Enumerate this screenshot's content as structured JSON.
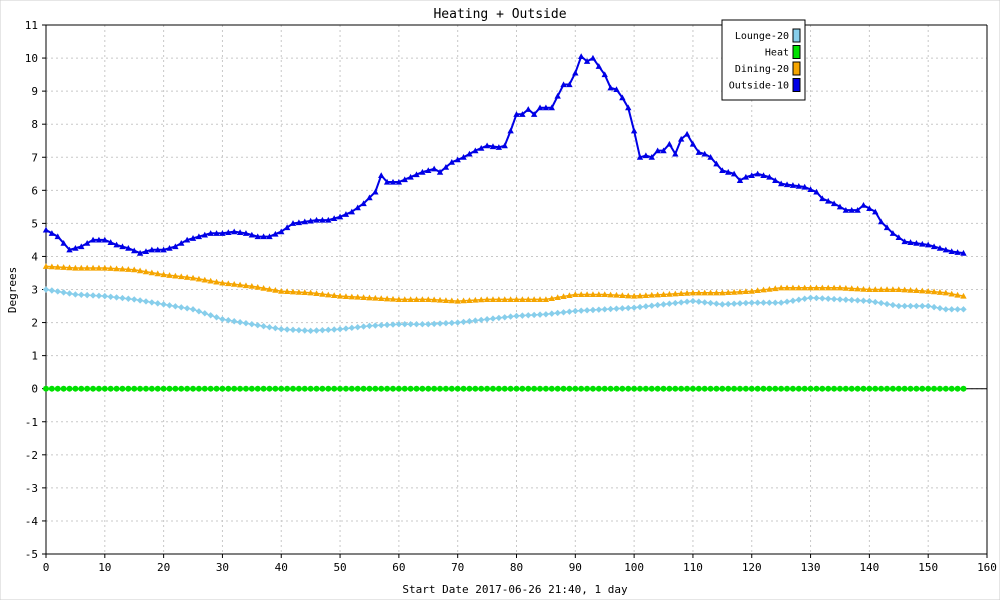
{
  "chart_data": {
    "type": "line",
    "title": "Heating + Outside",
    "xlabel": "Start Date 2017-06-26 21:40, 1 day",
    "ylabel": "Degrees",
    "xlim": [
      0,
      160
    ],
    "ylim": [
      -5,
      11
    ],
    "x_ticks": [
      0,
      10,
      20,
      30,
      40,
      50,
      60,
      70,
      80,
      90,
      100,
      110,
      120,
      130,
      140,
      150,
      160
    ],
    "y_ticks": [
      -5,
      -4,
      -3,
      -2,
      -1,
      0,
      1,
      2,
      3,
      4,
      5,
      6,
      7,
      8,
      9,
      10,
      11
    ],
    "grid": true,
    "legend_position": "top-right",
    "series": [
      {
        "name": "Lounge-20",
        "color": "#87ceeb",
        "marker": "diamond",
        "points": [
          [
            0,
            3.0
          ],
          [
            5,
            2.85
          ],
          [
            10,
            2.8
          ],
          [
            15,
            2.7
          ],
          [
            20,
            2.55
          ],
          [
            25,
            2.4
          ],
          [
            30,
            2.1
          ],
          [
            35,
            1.95
          ],
          [
            40,
            1.8
          ],
          [
            45,
            1.75
          ],
          [
            50,
            1.8
          ],
          [
            55,
            1.9
          ],
          [
            60,
            1.95
          ],
          [
            65,
            1.95
          ],
          [
            70,
            2.0
          ],
          [
            75,
            2.1
          ],
          [
            80,
            2.2
          ],
          [
            85,
            2.25
          ],
          [
            90,
            2.35
          ],
          [
            95,
            2.4
          ],
          [
            100,
            2.45
          ],
          [
            105,
            2.55
          ],
          [
            110,
            2.65
          ],
          [
            115,
            2.55
          ],
          [
            120,
            2.6
          ],
          [
            125,
            2.6
          ],
          [
            130,
            2.75
          ],
          [
            135,
            2.7
          ],
          [
            140,
            2.65
          ],
          [
            145,
            2.5
          ],
          [
            150,
            2.5
          ],
          [
            153,
            2.4
          ],
          [
            156,
            2.4
          ]
        ]
      },
      {
        "name": "Heat",
        "color": "#00e000",
        "marker": "circle",
        "points": [
          [
            0,
            0
          ],
          [
            156,
            0
          ]
        ]
      },
      {
        "name": "Dining-20",
        "color": "#f5a500",
        "marker": "triangle",
        "points": [
          [
            0,
            3.7
          ],
          [
            5,
            3.65
          ],
          [
            10,
            3.65
          ],
          [
            15,
            3.6
          ],
          [
            20,
            3.45
          ],
          [
            25,
            3.35
          ],
          [
            30,
            3.2
          ],
          [
            35,
            3.1
          ],
          [
            40,
            2.95
          ],
          [
            45,
            2.9
          ],
          [
            50,
            2.8
          ],
          [
            55,
            2.75
          ],
          [
            60,
            2.7
          ],
          [
            65,
            2.7
          ],
          [
            70,
            2.65
          ],
          [
            75,
            2.7
          ],
          [
            80,
            2.7
          ],
          [
            85,
            2.7
          ],
          [
            90,
            2.85
          ],
          [
            95,
            2.85
          ],
          [
            100,
            2.8
          ],
          [
            105,
            2.85
          ],
          [
            110,
            2.9
          ],
          [
            115,
            2.9
          ],
          [
            120,
            2.95
          ],
          [
            125,
            3.05
          ],
          [
            130,
            3.05
          ],
          [
            135,
            3.05
          ],
          [
            140,
            3.0
          ],
          [
            145,
            3.0
          ],
          [
            150,
            2.95
          ],
          [
            153,
            2.9
          ],
          [
            156,
            2.8
          ]
        ]
      },
      {
        "name": "Outside-10",
        "color": "#0000e6",
        "marker": "triangle",
        "points": [
          [
            0,
            4.8
          ],
          [
            2,
            4.6
          ],
          [
            4,
            4.2
          ],
          [
            6,
            4.3
          ],
          [
            8,
            4.5
          ],
          [
            10,
            4.5
          ],
          [
            12,
            4.35
          ],
          [
            14,
            4.25
          ],
          [
            16,
            4.1
          ],
          [
            18,
            4.2
          ],
          [
            20,
            4.2
          ],
          [
            22,
            4.3
          ],
          [
            24,
            4.5
          ],
          [
            26,
            4.6
          ],
          [
            28,
            4.7
          ],
          [
            30,
            4.7
          ],
          [
            32,
            4.75
          ],
          [
            34,
            4.7
          ],
          [
            36,
            4.6
          ],
          [
            38,
            4.6
          ],
          [
            40,
            4.75
          ],
          [
            42,
            5.0
          ],
          [
            44,
            5.05
          ],
          [
            46,
            5.1
          ],
          [
            48,
            5.1
          ],
          [
            50,
            5.2
          ],
          [
            52,
            5.35
          ],
          [
            54,
            5.6
          ],
          [
            56,
            5.95
          ],
          [
            57,
            6.45
          ],
          [
            58,
            6.25
          ],
          [
            60,
            6.25
          ],
          [
            62,
            6.4
          ],
          [
            64,
            6.55
          ],
          [
            66,
            6.65
          ],
          [
            67,
            6.55
          ],
          [
            69,
            6.85
          ],
          [
            71,
            7.0
          ],
          [
            73,
            7.2
          ],
          [
            75,
            7.35
          ],
          [
            77,
            7.3
          ],
          [
            78,
            7.35
          ],
          [
            79,
            7.8
          ],
          [
            80,
            8.3
          ],
          [
            81,
            8.3
          ],
          [
            82,
            8.45
          ],
          [
            83,
            8.3
          ],
          [
            84,
            8.5
          ],
          [
            86,
            8.5
          ],
          [
            87,
            8.85
          ],
          [
            88,
            9.2
          ],
          [
            89,
            9.2
          ],
          [
            90,
            9.55
          ],
          [
            91,
            10.05
          ],
          [
            92,
            9.9
          ],
          [
            93,
            10.0
          ],
          [
            94,
            9.75
          ],
          [
            95,
            9.5
          ],
          [
            96,
            9.1
          ],
          [
            97,
            9.05
          ],
          [
            98,
            8.8
          ],
          [
            99,
            8.5
          ],
          [
            100,
            7.8
          ],
          [
            101,
            7.0
          ],
          [
            102,
            7.05
          ],
          [
            103,
            7.0
          ],
          [
            104,
            7.2
          ],
          [
            105,
            7.2
          ],
          [
            106,
            7.4
          ],
          [
            107,
            7.1
          ],
          [
            108,
            7.55
          ],
          [
            109,
            7.7
          ],
          [
            110,
            7.4
          ],
          [
            111,
            7.15
          ],
          [
            112,
            7.1
          ],
          [
            113,
            7.0
          ],
          [
            115,
            6.6
          ],
          [
            117,
            6.5
          ],
          [
            118,
            6.3
          ],
          [
            119,
            6.4
          ],
          [
            121,
            6.5
          ],
          [
            123,
            6.4
          ],
          [
            125,
            6.2
          ],
          [
            127,
            6.15
          ],
          [
            129,
            6.1
          ],
          [
            131,
            5.95
          ],
          [
            132,
            5.75
          ],
          [
            134,
            5.6
          ],
          [
            136,
            5.4
          ],
          [
            138,
            5.4
          ],
          [
            139,
            5.55
          ],
          [
            140,
            5.45
          ],
          [
            141,
            5.35
          ],
          [
            142,
            5.05
          ],
          [
            144,
            4.7
          ],
          [
            146,
            4.45
          ],
          [
            148,
            4.4
          ],
          [
            150,
            4.35
          ],
          [
            152,
            4.25
          ],
          [
            154,
            4.15
          ],
          [
            156,
            4.1
          ]
        ]
      }
    ]
  }
}
